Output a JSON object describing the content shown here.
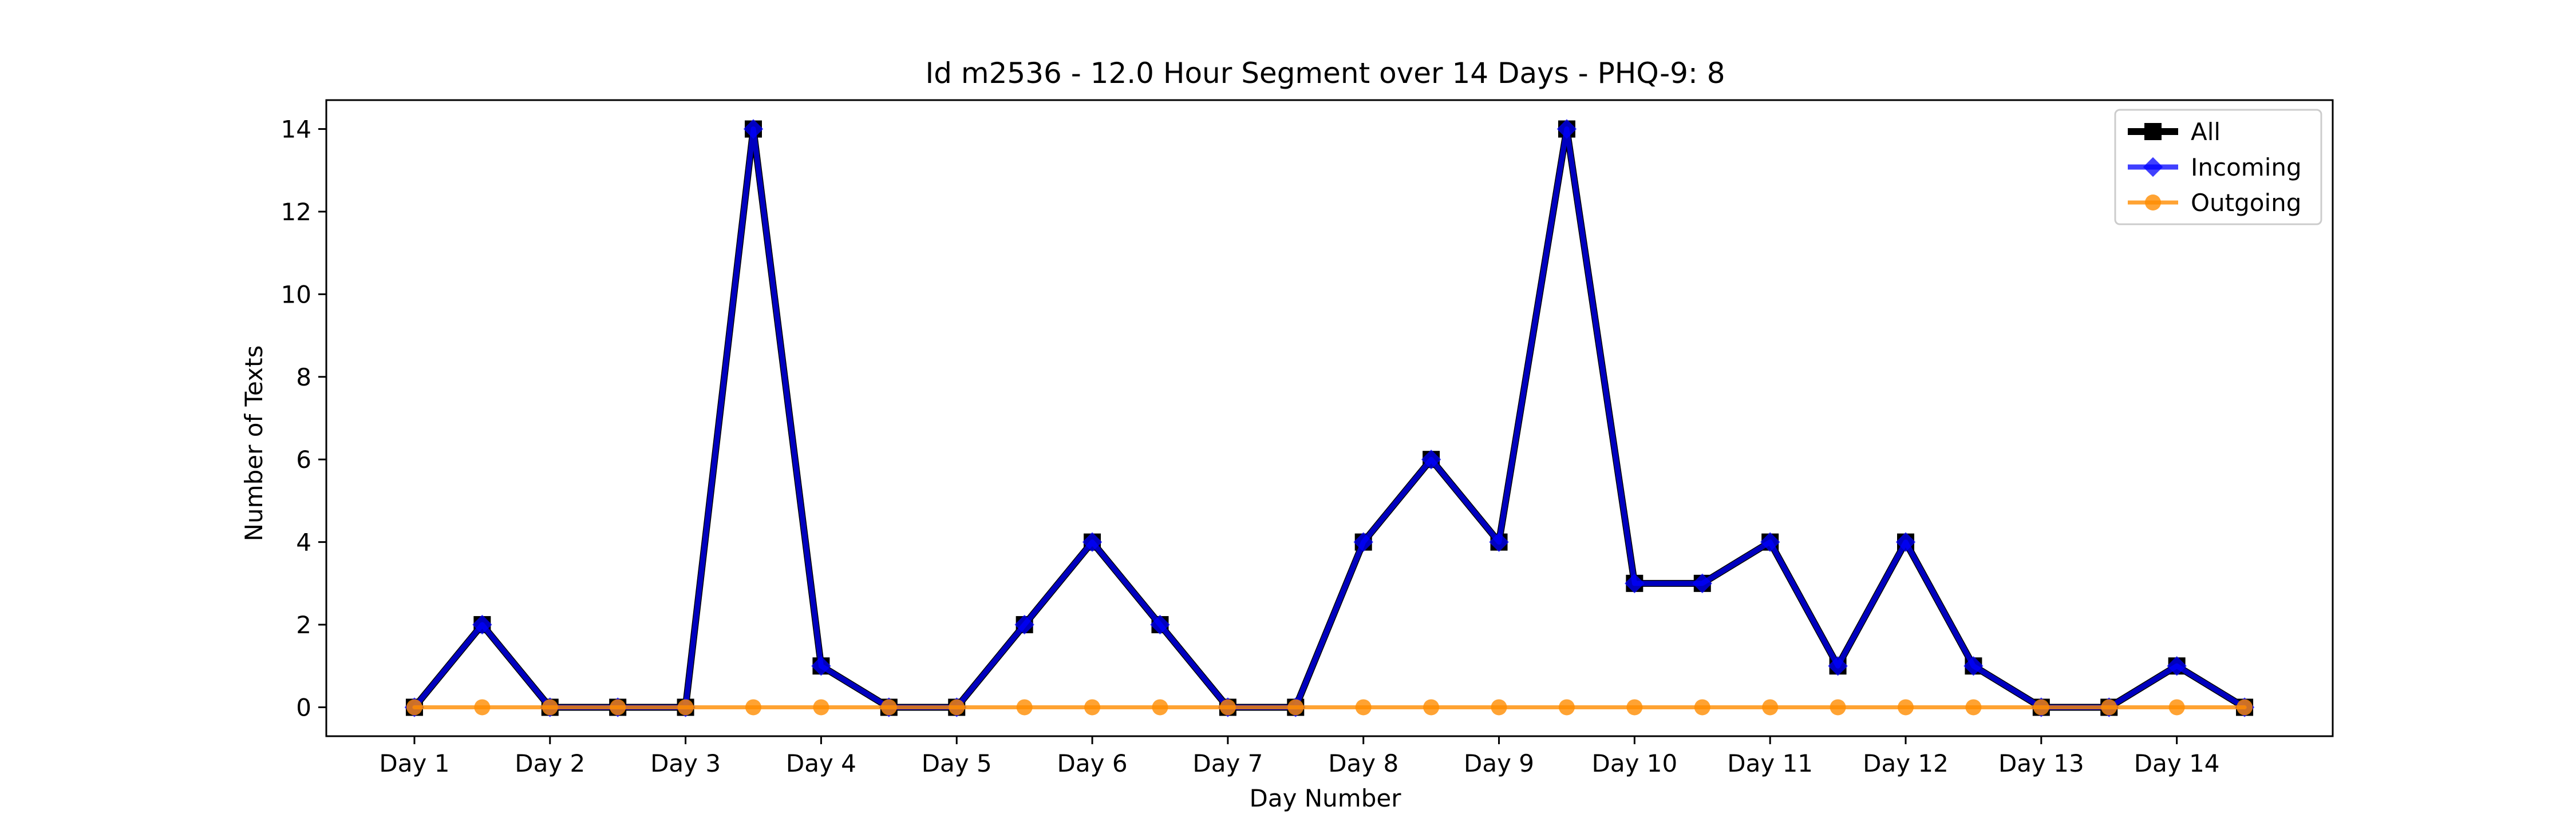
{
  "chart_data": {
    "type": "line",
    "title": "Id m2536 - 12.0 Hour Segment over 14 Days - PHQ-9: 8",
    "xlabel": "Day Number",
    "ylabel": "Number of Texts",
    "ylim": [
      -0.7,
      14.7
    ],
    "xlim": [
      0.35,
      15.15
    ],
    "yticks": [
      0,
      2,
      4,
      6,
      8,
      10,
      12,
      14
    ],
    "categories": [
      "Day 1",
      "Day 2",
      "Day 3",
      "Day 4",
      "Day 5",
      "Day 6",
      "Day 7",
      "Day 8",
      "Day 9",
      "Day 10",
      "Day 11",
      "Day 12",
      "Day 13",
      "Day 14"
    ],
    "x": [
      1,
      1.5,
      2,
      2.5,
      3,
      3.5,
      4,
      4.5,
      5,
      5.5,
      6,
      6.5,
      7,
      7.5,
      8,
      8.5,
      9,
      9.5,
      10,
      10.5,
      11,
      11.5,
      12,
      12.5,
      13,
      13.5,
      14,
      14.5
    ],
    "grid": false,
    "legend_position": "top-right",
    "series": [
      {
        "name": "All",
        "color": "#000000",
        "marker": "square",
        "values": [
          0,
          2,
          0,
          0,
          0,
          14,
          1,
          0,
          0,
          2,
          4,
          2,
          0,
          0,
          4,
          6,
          4,
          14,
          3,
          3,
          4,
          1,
          4,
          1,
          0,
          0,
          1,
          0
        ]
      },
      {
        "name": "Incoming",
        "color": "#0000ff",
        "marker": "diamond",
        "values": [
          0,
          2,
          0,
          0,
          0,
          14,
          1,
          0,
          0,
          2,
          4,
          2,
          0,
          0,
          4,
          6,
          4,
          14,
          3,
          3,
          4,
          1,
          4,
          1,
          0,
          0,
          1,
          0
        ]
      },
      {
        "name": "Outgoing",
        "color": "#ff8c00",
        "marker": "circle",
        "values": [
          0,
          0,
          0,
          0,
          0,
          0,
          0,
          0,
          0,
          0,
          0,
          0,
          0,
          0,
          0,
          0,
          0,
          0,
          0,
          0,
          0,
          0,
          0,
          0,
          0,
          0,
          0,
          0
        ]
      }
    ]
  }
}
